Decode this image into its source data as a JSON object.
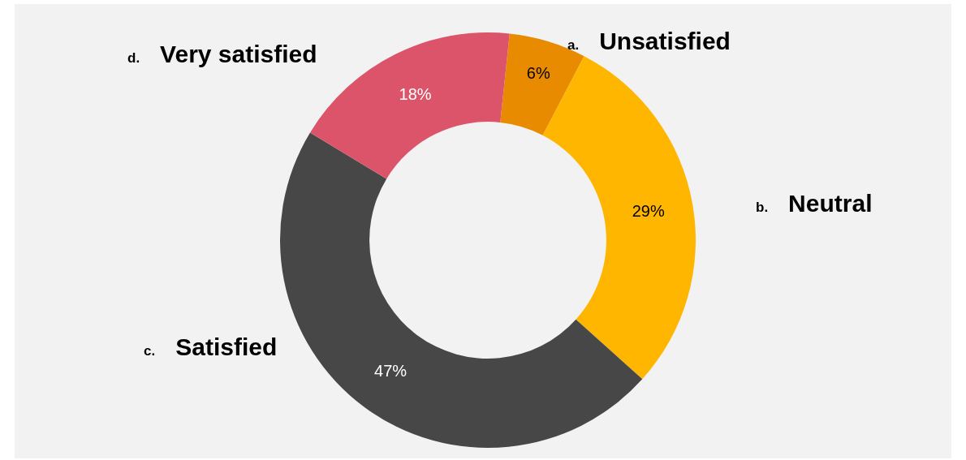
{
  "chart_data": {
    "type": "donut",
    "categories": [
      "a. Unsatisfied",
      "b. Neutral",
      "c. Satisfied",
      "d. Very satisfied"
    ],
    "values": [
      6,
      29,
      47,
      18
    ],
    "colors": [
      "#e98b00",
      "#ffb600",
      "#474747",
      "#db5469"
    ],
    "value_labels": [
      "6%",
      "29%",
      "47%",
      "18%"
    ],
    "legend": false
  }
}
